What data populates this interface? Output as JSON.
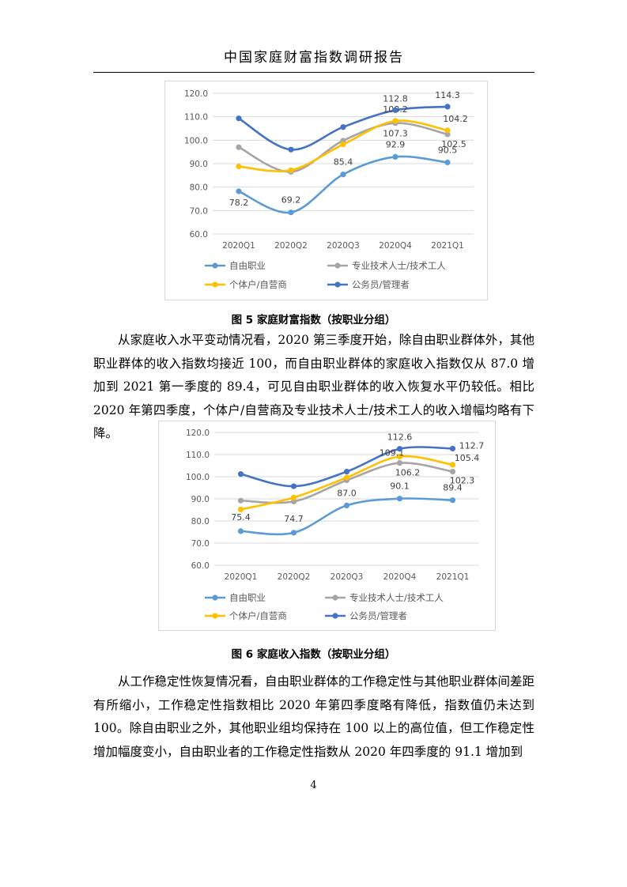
{
  "header": {
    "title": "中国家庭财富指数调研报告"
  },
  "figure5": {
    "caption": "图 5  家庭财富指数（按职业分组）",
    "chart_data": {
      "type": "line",
      "categories": [
        "2020Q1",
        "2020Q2",
        "2020Q3",
        "2020Q4",
        "2021Q1"
      ],
      "ylim": [
        60,
        120
      ],
      "yticks": [
        "60.0",
        "70.0",
        "80.0",
        "90.0",
        "100.0",
        "110.0",
        "120.0"
      ],
      "grid": true,
      "legend": "bottom",
      "series": [
        {
          "name": "自由职业",
          "color": "#5b9bd5",
          "values": [
            78.2,
            69.2,
            85.4,
            92.9,
            90.5
          ],
          "labels": [
            "78.2",
            "69.2",
            "85.4",
            "92.9",
            "90.5"
          ]
        },
        {
          "name": "专业技术人士/技术工人",
          "color": "#a5a5a5",
          "values": [
            97.0,
            86.5,
            99.8,
            107.3,
            102.5
          ],
          "labels": [
            null,
            null,
            null,
            "107.3",
            "102.5"
          ]
        },
        {
          "name": "个体户/自营商",
          "color": "#ffc000",
          "values": [
            88.8,
            87.2,
            98.2,
            108.2,
            104.2
          ],
          "labels": [
            null,
            null,
            null,
            "108.2",
            "104.2"
          ]
        },
        {
          "name": "公务员/管理者",
          "color": "#4472c4",
          "values": [
            109.3,
            96.0,
            105.6,
            112.8,
            114.3
          ],
          "labels": [
            null,
            null,
            null,
            "112.8",
            "114.3"
          ]
        }
      ]
    }
  },
  "paragraph1": "从家庭收入水平变动情况看，2020 第三季度开始，除自由职业群体外，其他职业群体的收入指数均接近 100，而自由职业群体的家庭收入指数仅从 87.0 增加到 2021 第一季度的 89.4，可见自由职业群体的收入恢复水平仍较低。相比 2020 年第四季度，个体户/自营商及专业技术人士/技术工人的收入增幅均略有下降。",
  "figure6": {
    "caption": "图 6  家庭收入指数（按职业分组）",
    "chart_data": {
      "type": "line",
      "categories": [
        "2020Q1",
        "2020Q2",
        "2020Q3",
        "2020Q4",
        "2021Q1"
      ],
      "ylim": [
        60,
        120
      ],
      "yticks": [
        "60.0",
        "70.0",
        "80.0",
        "90.0",
        "100.0",
        "110.0",
        "120.0"
      ],
      "grid": true,
      "legend": "bottom",
      "series": [
        {
          "name": "自由职业",
          "color": "#5b9bd5",
          "values": [
            75.4,
            74.7,
            87.0,
            90.1,
            89.4
          ],
          "labels": [
            "75.4",
            "74.7",
            "87.0",
            "90.1",
            "89.4"
          ]
        },
        {
          "name": "专业技术人士/技术工人",
          "color": "#a5a5a5",
          "values": [
            89.2,
            88.8,
            98.4,
            106.2,
            102.3
          ],
          "labels": [
            null,
            null,
            null,
            "106.2",
            "102.3"
          ]
        },
        {
          "name": "个体户/自营商",
          "color": "#ffc000",
          "values": [
            85.2,
            90.6,
            99.6,
            109.1,
            105.4
          ],
          "labels": [
            null,
            null,
            null,
            "109.1",
            "105.4"
          ]
        },
        {
          "name": "公务员/管理者",
          "color": "#4472c4",
          "values": [
            101.2,
            95.7,
            102.3,
            112.6,
            112.7
          ],
          "labels": [
            null,
            null,
            null,
            "112.6",
            "112.7"
          ]
        }
      ]
    }
  },
  "paragraph2": "从工作稳定性恢复情况看，自由职业群体的工作稳定性与其他职业群体间差距有所缩小，工作稳定性指数相比 2020 年第四季度略有降低，指数值仍未达到 100。除自由职业之外，其他职业组均保持在 100 以上的高位值，但工作稳定性增加幅度变小，自由职业者的工作稳定性指数从 2020 年四季度的 91.1 增加到",
  "page_number": "4"
}
